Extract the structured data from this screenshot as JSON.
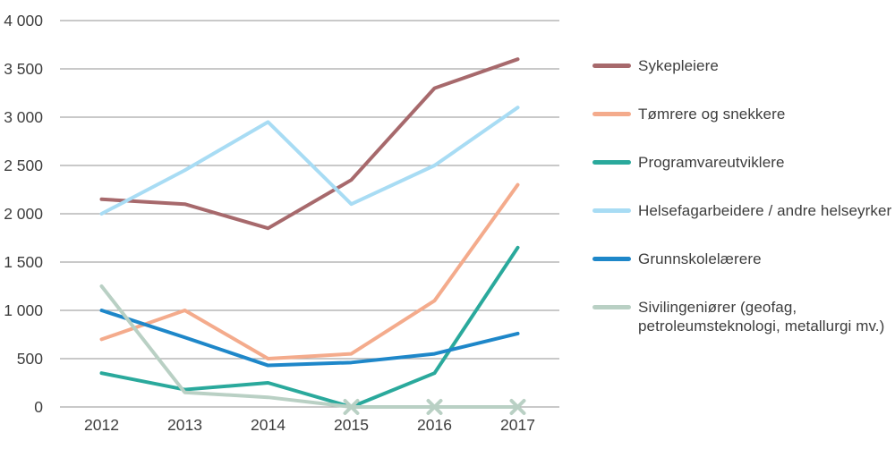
{
  "figure": {
    "background": "#ffffff",
    "text_color": "#3d3d3d",
    "gridline_color": "#a9a9a9"
  },
  "chart_data": {
    "type": "line",
    "title": "",
    "xlabel": "",
    "ylabel": "",
    "x": [
      2012,
      2013,
      2014,
      2015,
      2016,
      2017
    ],
    "x_tick_labels": [
      "2012",
      "2013",
      "2014",
      "2015",
      "2016",
      "2017"
    ],
    "y_tick_labels": [
      "0",
      "500",
      "1 000",
      "1 500",
      "2 000",
      "2 500",
      "3 000",
      "3 500",
      "4 000"
    ],
    "ylim": [
      0,
      4000
    ],
    "y_step": 500,
    "grid": "horizontal",
    "legend_position": "right",
    "series": [
      {
        "name": "Sykepleiere",
        "color": "#a7696c",
        "values": [
          2150,
          2100,
          1850,
          2350,
          3300,
          3600
        ]
      },
      {
        "name": "Tømrere og snekkere",
        "color": "#f4ab8c",
        "values": [
          700,
          1000,
          500,
          550,
          1100,
          2300
        ]
      },
      {
        "name": "Programvareutviklere",
        "color": "#2aa99c",
        "values": [
          350,
          180,
          250,
          0,
          350,
          1650
        ]
      },
      {
        "name": "Helsefagarbeidere / andre helseyrker",
        "color": "#a8dcf4",
        "values": [
          2000,
          2450,
          2950,
          2100,
          2500,
          3100
        ]
      },
      {
        "name": "Grunnskolelærere",
        "color": "#1e87c9",
        "values": [
          1000,
          720,
          430,
          460,
          550,
          760
        ]
      },
      {
        "name": "Sivilingeniører (geofag, petroleumsteknologi, metallurgi mv.)",
        "color": "#b9d0c4",
        "values": [
          1250,
          150,
          100,
          0,
          0,
          0
        ],
        "marker": "x",
        "marker_indices": [
          3,
          4,
          5
        ]
      }
    ]
  }
}
